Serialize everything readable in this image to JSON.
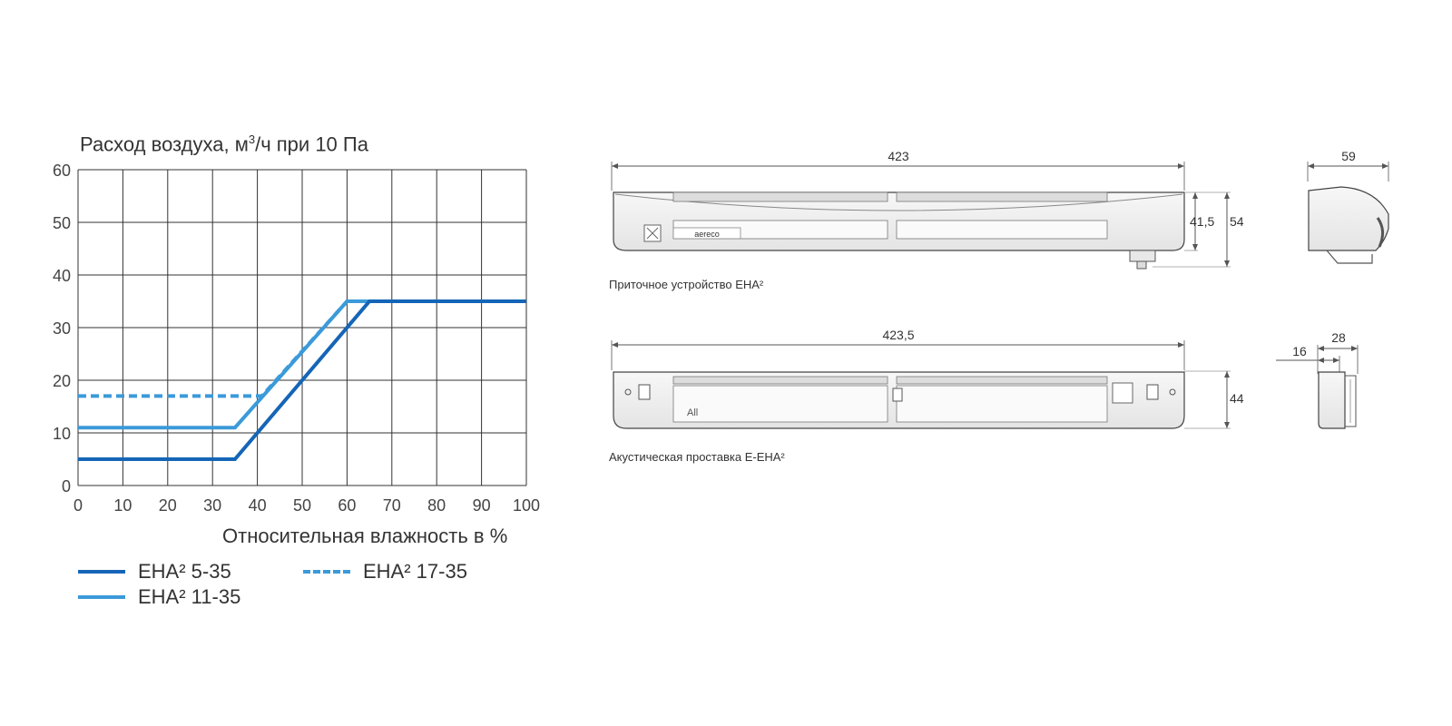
{
  "chart_data": {
    "type": "line",
    "ylabel_parts": [
      "Расход воздуха, м",
      "3",
      "/ч при 10 Па"
    ],
    "xlabel": "Относительная влажность в %",
    "xlim": [
      0,
      100
    ],
    "ylim": [
      0,
      60
    ],
    "xticks": [
      0,
      10,
      20,
      30,
      40,
      50,
      60,
      70,
      80,
      90,
      100
    ],
    "yticks": [
      0,
      10,
      20,
      30,
      40,
      50,
      60
    ],
    "grid": true,
    "legend_position": "bottom",
    "series": [
      {
        "name": "EHA² 5-35",
        "color": "#1565b7",
        "dash": false,
        "x": [
          0,
          35,
          65,
          100
        ],
        "y": [
          5,
          5,
          35,
          35
        ]
      },
      {
        "name": "EHA² 11-35",
        "color": "#3b9ad9",
        "dash": false,
        "x": [
          0,
          35,
          60,
          100
        ],
        "y": [
          11,
          11,
          35,
          35
        ]
      },
      {
        "name": "EHA² 17-35",
        "color": "#3b9ad9",
        "dash": true,
        "x": [
          0,
          41,
          60,
          100
        ],
        "y": [
          17,
          17,
          35,
          35
        ]
      }
    ]
  },
  "drawings": {
    "device1": {
      "caption": "Приточное устройство EHA²",
      "length": "423",
      "height_inner": "41,5",
      "height_total": "54",
      "depth": "59",
      "brand": "aereco"
    },
    "device2": {
      "caption": "Акустическая проставка E-EHA²",
      "length": "423,5",
      "height": "44",
      "depth_small": "16",
      "depth_total": "28",
      "marking": "All"
    }
  }
}
